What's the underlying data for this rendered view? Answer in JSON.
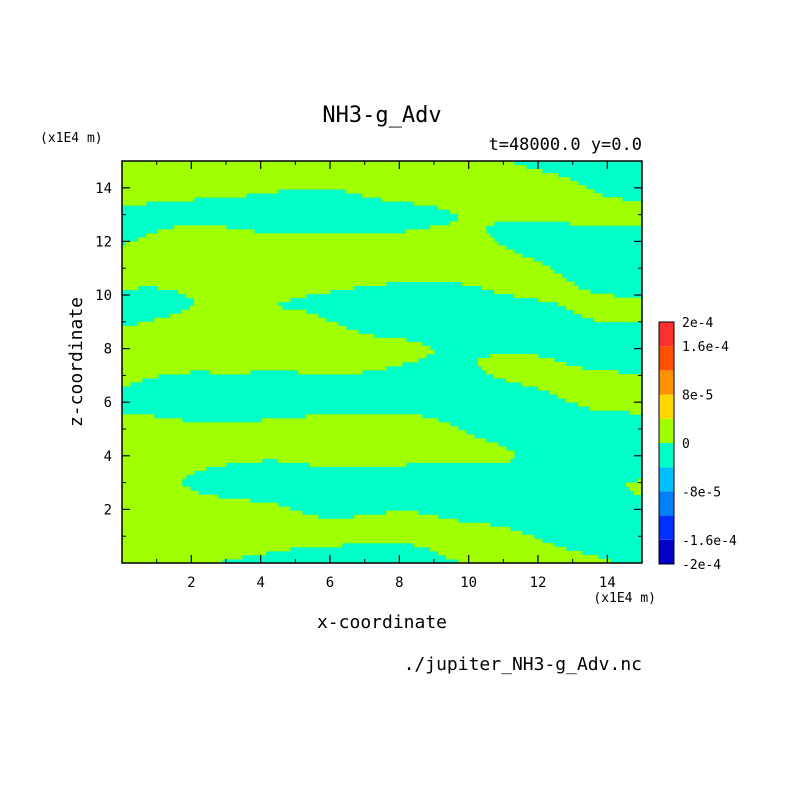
{
  "chart_data": {
    "type": "heatmap",
    "title": "NH3-g_Adv",
    "subtitle": "t=48000.0 y=0.0",
    "xlabel": "x-coordinate",
    "ylabel": "z-coordinate",
    "x_unit": "(x1E4 m)",
    "y_unit": "(x1E4 m)",
    "xlim": [
      0,
      15
    ],
    "ylim": [
      0,
      15
    ],
    "x_ticks": [
      2,
      4,
      6,
      8,
      10,
      12,
      14
    ],
    "y_ticks": [
      2,
      4,
      6,
      8,
      10,
      12,
      14
    ],
    "grid": false,
    "legend": "right",
    "colorbar": {
      "labels": [
        "2e-4",
        "1.6e-4",
        "8e-5",
        "0",
        "-8e-5",
        "-1.6e-4",
        "-2e-4"
      ],
      "label_values": [
        0.0002,
        0.00016,
        8e-05,
        0,
        -8e-05,
        -0.00016,
        -0.0002
      ],
      "levels": [
        -0.0002,
        -0.00016,
        -0.00012,
        -8e-05,
        -4e-05,
        0,
        4e-05,
        8e-05,
        0.00012,
        0.00016,
        0.0002
      ],
      "colors": [
        "#0000c8",
        "#0030ff",
        "#0080ff",
        "#00bfff",
        "#00ffc8",
        "#a0ff00",
        "#ffd800",
        "#ff9000",
        "#ff5000",
        "#ff3030"
      ]
    },
    "field_colors": {
      "negative": "#00ffc8",
      "positive": "#a0ff00"
    },
    "field_value_range": [
      -4e-05,
      4e-05
    ],
    "footer": "./jupiter_NH3-g_Adv.nc"
  }
}
